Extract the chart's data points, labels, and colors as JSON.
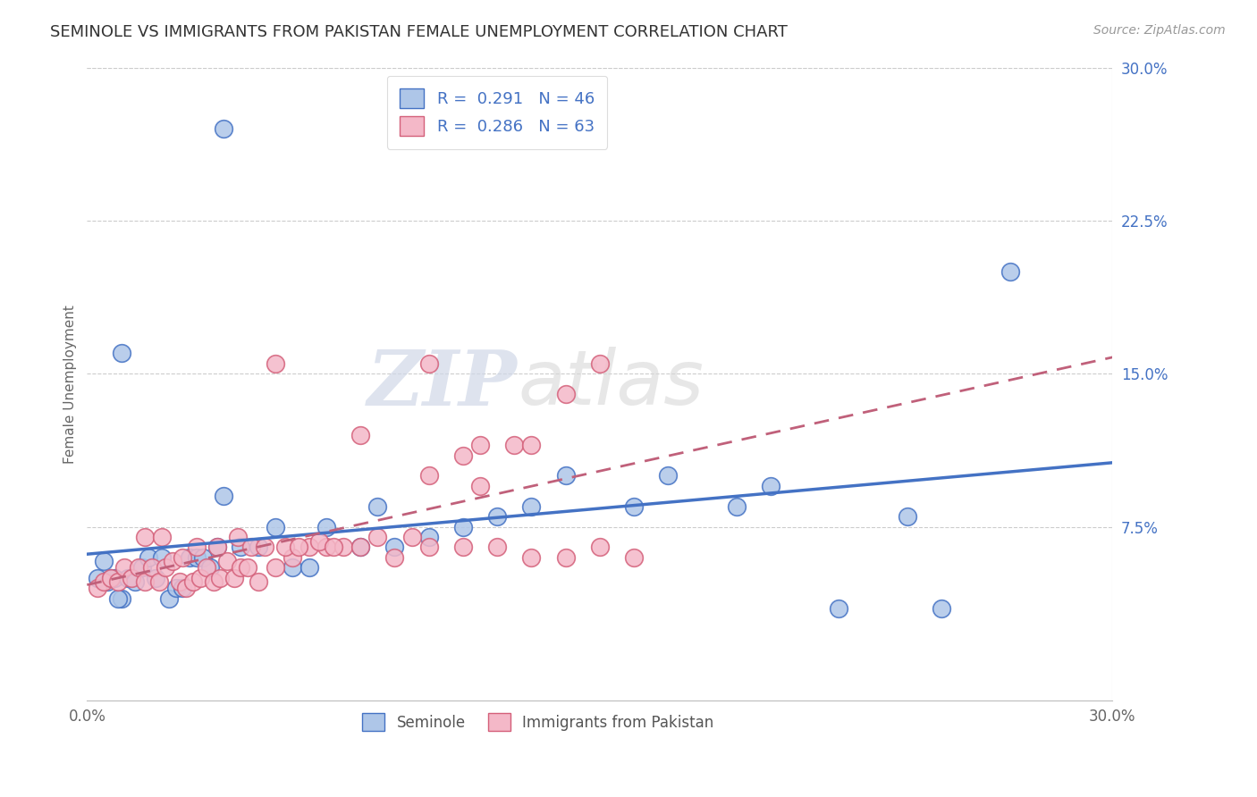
{
  "title": "SEMINOLE VS IMMIGRANTS FROM PAKISTAN FEMALE UNEMPLOYMENT CORRELATION CHART",
  "source": "Source: ZipAtlas.com",
  "ylabel": "Female Unemployment",
  "x_min": 0.0,
  "x_max": 0.3,
  "y_min": -0.01,
  "y_max": 0.3,
  "y_ticks_right": [
    0.075,
    0.15,
    0.225,
    0.3
  ],
  "y_tick_labels_right": [
    "7.5%",
    "15.0%",
    "22.5%",
    "30.0%"
  ],
  "legend_r1": "0.291",
  "legend_n1": "46",
  "legend_r2": "0.286",
  "legend_n2": "63",
  "color_seminole_face": "#aec6e8",
  "color_seminole_edge": "#4472c4",
  "color_pakistan_face": "#f4b8c8",
  "color_pakistan_edge": "#d4607a",
  "color_line_seminole": "#4472c4",
  "color_line_pakistan": "#c0607a",
  "color_text_blue": "#4472c4",
  "watermark_zip": "ZIP",
  "watermark_atlas": "atlas",
  "seminole_x": [
    0.04,
    0.01,
    0.005,
    0.006,
    0.008,
    0.01,
    0.012,
    0.014,
    0.016,
    0.018,
    0.02,
    0.022,
    0.024,
    0.026,
    0.028,
    0.03,
    0.032,
    0.034,
    0.036,
    0.038,
    0.04,
    0.045,
    0.05,
    0.055,
    0.06,
    0.065,
    0.07,
    0.08,
    0.085,
    0.09,
    0.1,
    0.11,
    0.12,
    0.13,
    0.14,
    0.16,
    0.17,
    0.19,
    0.2,
    0.22,
    0.24,
    0.25,
    0.27,
    0.003,
    0.007,
    0.009
  ],
  "seminole_y": [
    0.27,
    0.16,
    0.058,
    0.048,
    0.05,
    0.04,
    0.05,
    0.048,
    0.055,
    0.06,
    0.05,
    0.06,
    0.04,
    0.045,
    0.045,
    0.06,
    0.06,
    0.06,
    0.055,
    0.065,
    0.09,
    0.065,
    0.065,
    0.075,
    0.055,
    0.055,
    0.075,
    0.065,
    0.085,
    0.065,
    0.07,
    0.075,
    0.08,
    0.085,
    0.1,
    0.085,
    0.1,
    0.085,
    0.095,
    0.035,
    0.08,
    0.035,
    0.2,
    0.05,
    0.05,
    0.04
  ],
  "pakistan_x": [
    0.003,
    0.005,
    0.007,
    0.009,
    0.011,
    0.013,
    0.015,
    0.017,
    0.019,
    0.021,
    0.023,
    0.025,
    0.027,
    0.029,
    0.031,
    0.033,
    0.035,
    0.037,
    0.039,
    0.041,
    0.043,
    0.045,
    0.047,
    0.05,
    0.055,
    0.06,
    0.065,
    0.07,
    0.075,
    0.08,
    0.085,
    0.09,
    0.095,
    0.1,
    0.11,
    0.12,
    0.13,
    0.14,
    0.15,
    0.16,
    0.017,
    0.022,
    0.028,
    0.032,
    0.038,
    0.044,
    0.048,
    0.052,
    0.058,
    0.062,
    0.068,
    0.072,
    0.1,
    0.11,
    0.14,
    0.15,
    0.1,
    0.115,
    0.125,
    0.13,
    0.115,
    0.08,
    0.055
  ],
  "pakistan_y": [
    0.045,
    0.048,
    0.05,
    0.048,
    0.055,
    0.05,
    0.055,
    0.048,
    0.055,
    0.048,
    0.055,
    0.058,
    0.048,
    0.045,
    0.048,
    0.05,
    0.055,
    0.048,
    0.05,
    0.058,
    0.05,
    0.055,
    0.055,
    0.048,
    0.055,
    0.06,
    0.065,
    0.065,
    0.065,
    0.065,
    0.07,
    0.06,
    0.07,
    0.065,
    0.065,
    0.065,
    0.06,
    0.06,
    0.065,
    0.06,
    0.07,
    0.07,
    0.06,
    0.065,
    0.065,
    0.07,
    0.065,
    0.065,
    0.065,
    0.065,
    0.068,
    0.065,
    0.1,
    0.11,
    0.14,
    0.155,
    0.155,
    0.115,
    0.115,
    0.115,
    0.095,
    0.12,
    0.155
  ]
}
